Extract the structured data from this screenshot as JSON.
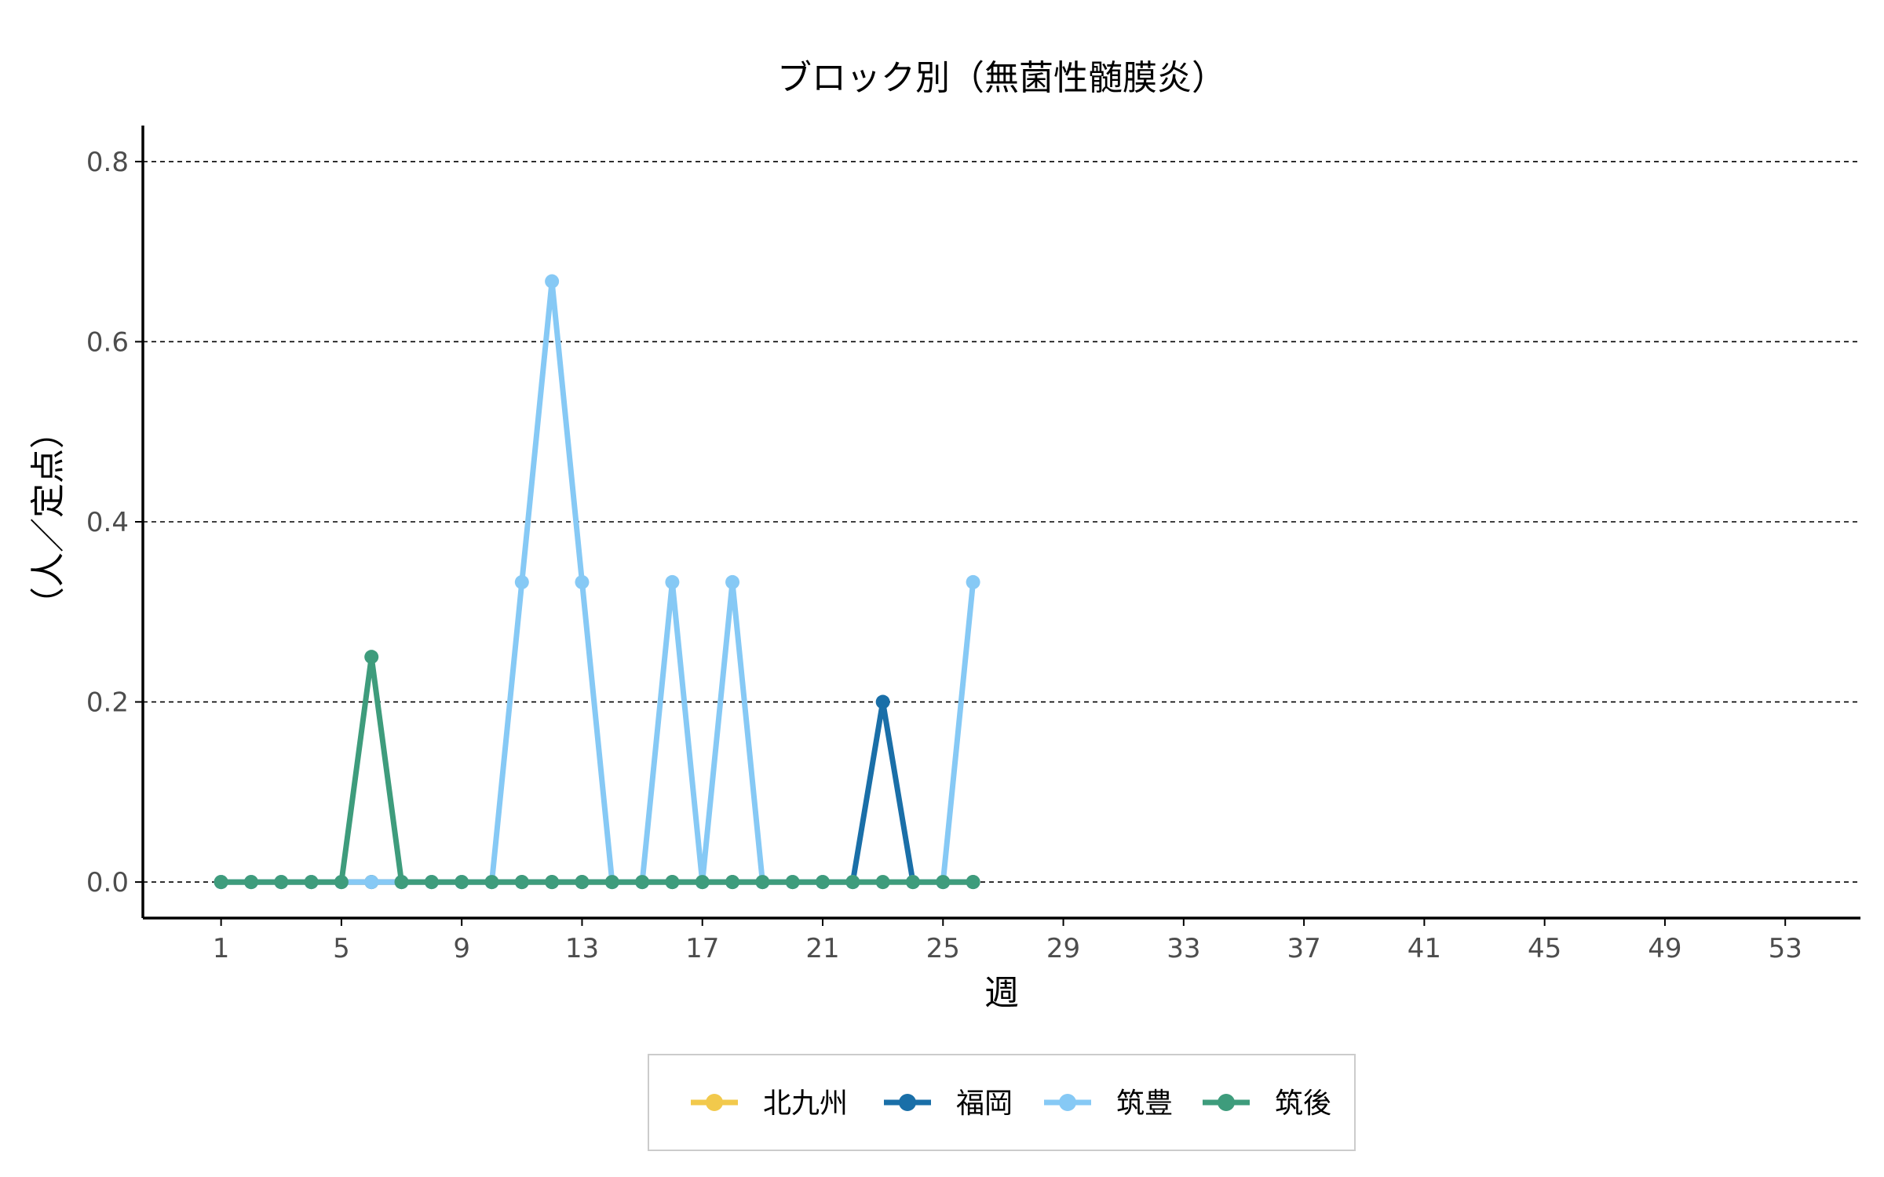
{
  "chart_data": {
    "type": "line",
    "title": "ブロック別（無菌性髄膜炎）",
    "xlabel": "週",
    "ylabel": "（人／定点）",
    "xlim": [
      -1.6,
      55.5
    ],
    "ylim": [
      -0.04,
      0.84
    ],
    "x_ticks": [
      1,
      5,
      9,
      13,
      17,
      21,
      25,
      29,
      33,
      37,
      41,
      45,
      49,
      53
    ],
    "x_tick_labels": [
      "1",
      "5",
      "9",
      "13",
      "17",
      "21",
      "25",
      "29",
      "33",
      "37",
      "41",
      "45",
      "49",
      "53"
    ],
    "y_ticks": [
      0.0,
      0.2,
      0.4,
      0.6,
      0.8
    ],
    "y_tick_labels": [
      "0.0",
      "0.2",
      "0.4",
      "0.6",
      "0.8"
    ],
    "grid": "horizontal-dashed",
    "legend_position": "bottom",
    "series": [
      {
        "name": "北九州",
        "color": "#f2c94c",
        "x": [
          1,
          2,
          3,
          4,
          5,
          6,
          7,
          8,
          9,
          10,
          11,
          12,
          13,
          14,
          15,
          16,
          17,
          18,
          19,
          20,
          21,
          22,
          23,
          24,
          25,
          26
        ],
        "values": [
          0,
          0,
          0,
          0,
          0,
          0,
          0,
          0,
          0,
          0,
          0,
          0,
          0,
          0,
          0,
          0,
          0,
          0,
          0,
          0,
          0,
          0,
          0,
          0,
          0,
          0
        ]
      },
      {
        "name": "福岡",
        "color": "#1a6fa8",
        "x": [
          1,
          2,
          3,
          4,
          5,
          6,
          7,
          8,
          9,
          10,
          11,
          12,
          13,
          14,
          15,
          16,
          17,
          18,
          19,
          20,
          21,
          22,
          23,
          24,
          25,
          26
        ],
        "values": [
          0,
          0,
          0,
          0,
          0,
          0,
          0,
          0,
          0,
          0,
          0,
          0,
          0,
          0,
          0,
          0,
          0,
          0,
          0,
          0,
          0,
          0,
          0.2,
          0,
          0,
          0
        ]
      },
      {
        "name": "筑豊",
        "color": "#86c9f5",
        "x": [
          1,
          2,
          3,
          4,
          5,
          6,
          7,
          8,
          9,
          10,
          11,
          12,
          13,
          14,
          15,
          16,
          17,
          18,
          19,
          20,
          21,
          22,
          23,
          24,
          25,
          26
        ],
        "values": [
          0,
          0,
          0,
          0,
          0,
          0,
          0,
          0,
          0,
          0,
          0.333,
          0.667,
          0.333,
          0,
          0,
          0.333,
          0,
          0.333,
          0,
          0,
          0,
          0,
          0,
          0,
          0,
          0.333
        ]
      },
      {
        "name": "筑後",
        "color": "#3e9c7c",
        "x": [
          1,
          2,
          3,
          4,
          5,
          6,
          7,
          8,
          9,
          10,
          11,
          12,
          13,
          14,
          15,
          16,
          17,
          18,
          19,
          20,
          21,
          22,
          23,
          24,
          25,
          26
        ],
        "values": [
          0,
          0,
          0,
          0,
          0,
          0.25,
          0,
          0,
          0,
          0,
          0,
          0,
          0,
          0,
          0,
          0,
          0,
          0,
          0,
          0,
          0,
          0,
          0,
          0,
          0,
          0
        ]
      }
    ]
  }
}
